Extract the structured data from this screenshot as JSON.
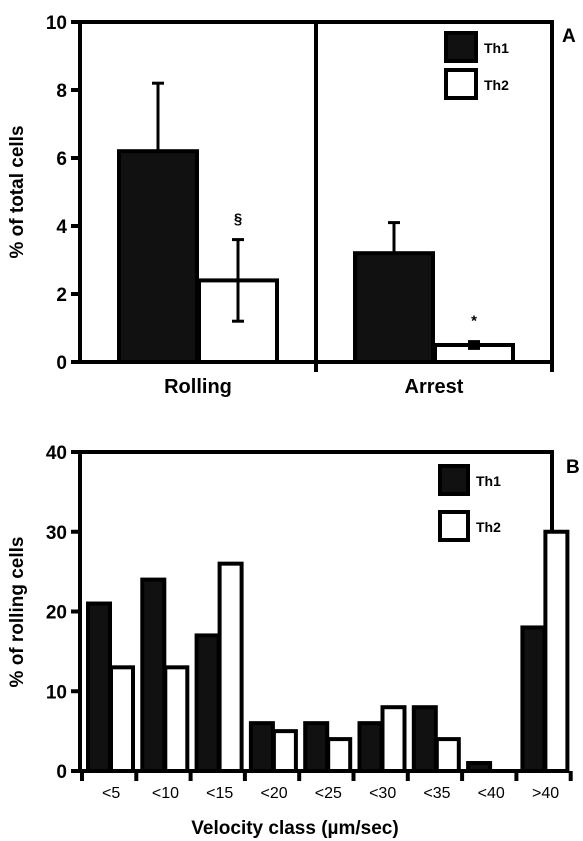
{
  "chart_data": [
    {
      "type": "bar",
      "panel_label": "A",
      "categories": [
        "Rolling",
        "Arrest"
      ],
      "series": [
        {
          "name": "Th1",
          "values": [
            6.2,
            3.2
          ],
          "errors": [
            2.0,
            0.9
          ],
          "color": "#111111"
        },
        {
          "name": "Th2",
          "values": [
            2.4,
            0.5
          ],
          "errors": [
            1.2,
            0.1
          ],
          "color": "#ffffff"
        }
      ],
      "annotations": [
        "§",
        "*"
      ],
      "ylabel": "% of total cells",
      "ylim": [
        0,
        10
      ],
      "yticks": [
        "0",
        "2",
        "4",
        "6",
        "8",
        "10"
      ],
      "legend": "top-right",
      "grid": false
    },
    {
      "type": "bar",
      "panel_label": "B",
      "categories": [
        "<5",
        "<10",
        "<15",
        "<20",
        "<25",
        "<30",
        "<35",
        "<40",
        ">40"
      ],
      "series": [
        {
          "name": "Th1",
          "values": [
            21,
            24,
            17,
            6,
            6,
            6,
            8,
            1,
            18
          ],
          "color": "#111111"
        },
        {
          "name": "Th2",
          "values": [
            13,
            13,
            26,
            5,
            4,
            8,
            4,
            0,
            30
          ],
          "color": "#ffffff"
        }
      ],
      "xlabel": "Velocity class (µm/sec)",
      "ylabel": "% of rolling cells",
      "ylim": [
        0,
        40
      ],
      "yticks": [
        "0",
        "10",
        "20",
        "30",
        "40"
      ],
      "legend": "top-right",
      "grid": false
    }
  ]
}
